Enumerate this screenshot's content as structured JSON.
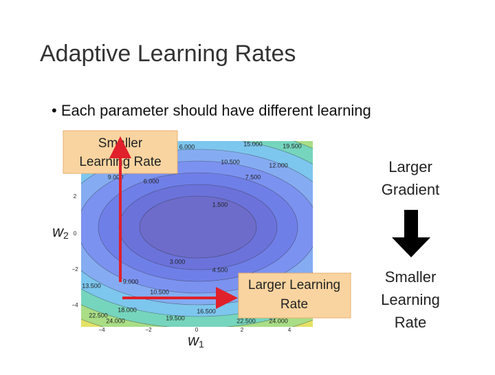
{
  "title": "Adaptive Learning Rates",
  "bullets": [
    "Each parameter should have different learning"
  ],
  "plot": {
    "contour_labels": [
      "6.000",
      "15.000",
      "19.500",
      "10.500",
      "12.000",
      "9.000",
      "6.000",
      "7.500",
      "1.500",
      "3.000",
      "4.500",
      "9.000",
      "13.500",
      "10.500",
      "18.000",
      "16.500",
      "19.500",
      "22.500",
      "24.000",
      "22.500",
      "24.000"
    ],
    "xticks": [
      "−4",
      "−2",
      "0",
      "2",
      "4"
    ],
    "yticks": [
      "2",
      "0",
      "−2",
      "−4"
    ],
    "xlabel": {
      "symbol": "w",
      "subscript": "1"
    },
    "ylabel": {
      "symbol": "w",
      "subscript": "2"
    }
  },
  "callouts": [
    [
      "Smaller",
      "Learning Rate"
    ],
    [
      "Larger Learning",
      "Rate"
    ]
  ],
  "right_panel": {
    "top": [
      "Larger",
      "Gradient"
    ],
    "bottom": [
      "Smaller",
      "Learning",
      "Rate"
    ]
  }
}
